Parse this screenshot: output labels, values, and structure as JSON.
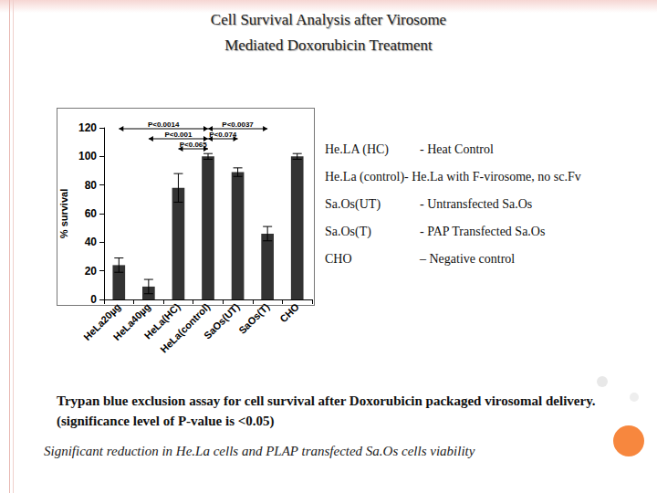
{
  "slide": {
    "title": [
      "Cell Survival Analysis after Virosome",
      "Mediated Doxorubicin Treatment"
    ],
    "key": [
      {
        "label": "He.LA (HC)",
        "text": "- Heat Control"
      },
      {
        "label": "He.La (control)",
        "text": "- He.La with F-virosome, no sc.Fv"
      },
      {
        "label": "Sa.Os(UT)",
        "text": "-  Untransfected Sa.Os"
      },
      {
        "label": "Sa.Os(T)",
        "text": "- PAP Transfected Sa.Os"
      },
      {
        "label": "CHO",
        "text": "– Negative control"
      }
    ],
    "caption": "Trypan blue exclusion assay for cell survival after Doxorubicin packaged virosomal delivery. (significance level of P-value is <0.05)",
    "conclusion": "Significant reduction in He.La cells and PLAP transfected Sa.Os cells viability"
  },
  "chart_data": {
    "type": "bar",
    "y_label": "% survival",
    "categories": [
      "HeLa20µg",
      "HeLa40µg",
      "HeLa(HC)",
      "HeLa(control)",
      "SaOs(UT)",
      "SaOs(T)",
      "CHO"
    ],
    "values": [
      24,
      9,
      78,
      100,
      89,
      46,
      100
    ],
    "errors": [
      5,
      5,
      10,
      2,
      3,
      5,
      2
    ],
    "color": "#333333",
    "ylim": [
      0,
      120
    ],
    "yticks": [
      0,
      20,
      40,
      60,
      80,
      100,
      120
    ],
    "grid": false,
    "annotations": [
      {
        "text": "P<0.0014",
        "from": "HeLa20µg",
        "to": "HeLa(control)"
      },
      {
        "text": "P<0.0037",
        "from": "HeLa(control)",
        "to": "SaOs(T)"
      },
      {
        "text": "P<0.001",
        "from": "HeLa40µg",
        "to": "HeLa(control)"
      },
      {
        "text": "P<0.065",
        "from": "HeLa(HC)",
        "to": "HeLa(control)"
      },
      {
        "text": "P<0.074",
        "from": "HeLa(control)",
        "to": "SaOs(UT)"
      }
    ]
  }
}
